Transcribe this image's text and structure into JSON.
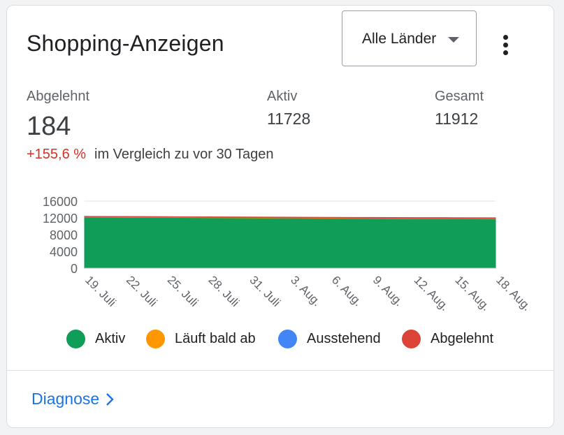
{
  "header": {
    "title": "Shopping-Anzeigen",
    "country_select": {
      "value": "Alle Länder"
    },
    "more_menu_icon": "more-vert-icon"
  },
  "stats": {
    "rejected": {
      "label": "Abgelehnt",
      "value": "184"
    },
    "active": {
      "label": "Aktiv",
      "value": "11728"
    },
    "total": {
      "label": "Gesamt",
      "value": "11912"
    },
    "change": "+155,6 %",
    "comparison": "im Vergleich zu vor 30 Tagen"
  },
  "chart_data": {
    "type": "area",
    "stacked": true,
    "y_ticks": [
      "16000",
      "12000",
      "8000",
      "4000",
      "0"
    ],
    "ylim": [
      0,
      16000
    ],
    "x": [
      "19. Juli",
      "22. Juli",
      "25. Juli",
      "28. Juli",
      "31. Juli",
      "3. Aug.",
      "6. Aug.",
      "9. Aug.",
      "12. Aug.",
      "15. Aug.",
      "18. Aug."
    ],
    "series": [
      {
        "name": "Aktiv",
        "color": "#0f9d58",
        "values": [
          12200,
          12150,
          12100,
          12050,
          12000,
          11950,
          11900,
          11850,
          11800,
          11780,
          11728
        ]
      },
      {
        "name": "Läuft bald ab",
        "color": "#ff9800",
        "values": [
          100,
          100,
          100,
          100,
          100,
          100,
          100,
          100,
          100,
          100,
          100
        ]
      },
      {
        "name": "Ausstehend",
        "color": "#4285f4",
        "values": [
          0,
          0,
          0,
          0,
          0,
          0,
          0,
          0,
          0,
          0,
          0
        ]
      },
      {
        "name": "Abgelehnt",
        "color": "#db4437",
        "values": [
          72,
          80,
          90,
          100,
          110,
          120,
          135,
          150,
          160,
          172,
          184
        ]
      }
    ],
    "grid": true,
    "legend_position": "bottom"
  },
  "legend": [
    {
      "label": "Aktiv",
      "color": "#0f9d58"
    },
    {
      "label": "Läuft bald ab",
      "color": "#ff9800"
    },
    {
      "label": "Ausstehend",
      "color": "#4285f4"
    },
    {
      "label": "Abgelehnt",
      "color": "#db4437"
    }
  ],
  "footer": {
    "link": "Diagnose",
    "link_icon": "chevron-right-icon"
  }
}
